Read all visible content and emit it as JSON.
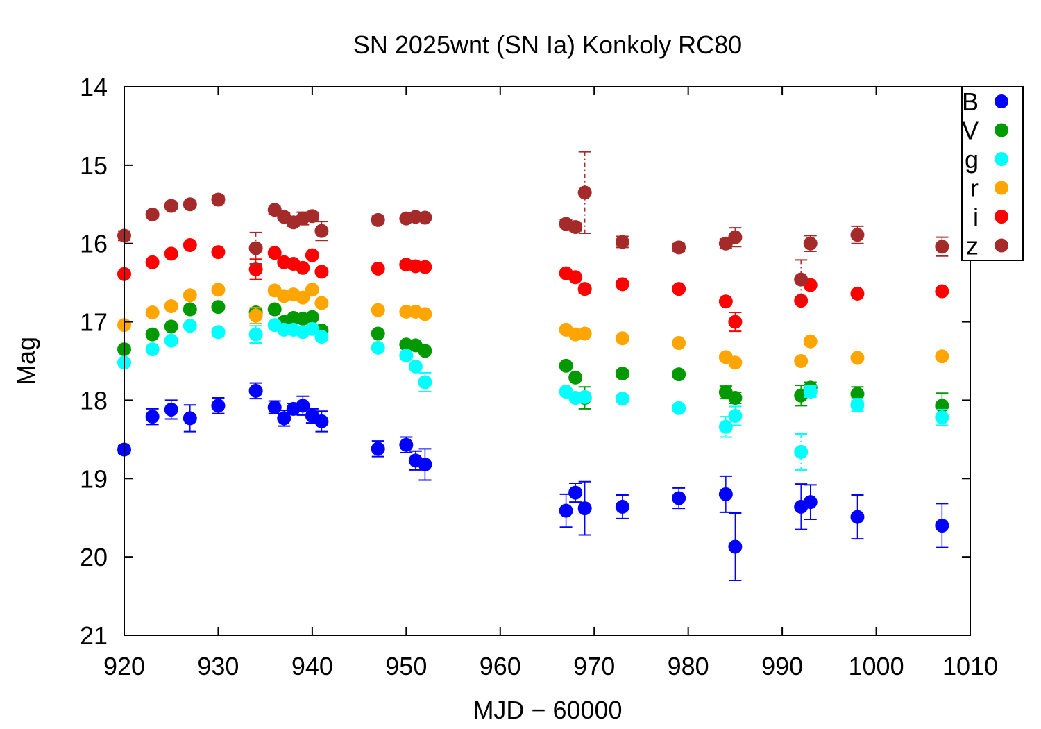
{
  "chart_data": {
    "type": "scatter",
    "title": "SN 2025wnt (SN Ia) Konkoly RC80",
    "xlabel": "MJD − 60000",
    "ylabel": "Mag",
    "xlim": [
      920,
      1010
    ],
    "ylim": [
      14,
      21
    ],
    "y_inverted": true,
    "grid": false,
    "legend_position": "top-right",
    "xticks": [
      920,
      930,
      940,
      950,
      960,
      970,
      980,
      990,
      1000,
      1010
    ],
    "yticks": [
      14,
      15,
      16,
      17,
      18,
      19,
      20,
      21
    ],
    "x": [
      920,
      923,
      925,
      927,
      930,
      934,
      936,
      937,
      938,
      939,
      940,
      941,
      947,
      950,
      951,
      952,
      967,
      968,
      969,
      973,
      979,
      984,
      985,
      992,
      993,
      998,
      1007
    ],
    "series": [
      {
        "name": "B",
        "color": "#0000ff",
        "values": [
          18.63,
          18.21,
          18.12,
          18.23,
          18.07,
          17.88,
          18.09,
          18.23,
          18.11,
          18.07,
          18.2,
          18.27,
          18.62,
          18.57,
          18.77,
          18.82,
          19.41,
          19.18,
          19.38,
          19.36,
          19.25,
          19.2,
          19.87,
          19.36,
          19.3,
          19.49,
          19.6
        ],
        "errors": [
          0.05,
          0.1,
          0.12,
          0.17,
          0.1,
          0.1,
          0.08,
          0.1,
          0.07,
          0.12,
          0.09,
          0.13,
          0.1,
          0.1,
          0.12,
          0.2,
          0.21,
          0.12,
          0.34,
          0.15,
          0.13,
          0.23,
          0.43,
          0.29,
          0.22,
          0.28,
          0.28
        ]
      },
      {
        "name": "V",
        "color": "#009900",
        "values": [
          17.35,
          17.16,
          17.06,
          16.84,
          16.81,
          16.88,
          16.84,
          17.0,
          16.95,
          16.96,
          16.94,
          17.11,
          17.15,
          17.29,
          17.3,
          17.37,
          17.56,
          17.71,
          17.97,
          17.66,
          17.67,
          17.9,
          17.97,
          17.94,
          17.84,
          17.92,
          18.07
        ],
        "errors": [
          0.03,
          0.03,
          0.03,
          0.04,
          0.03,
          0.05,
          0.03,
          0.03,
          0.03,
          0.03,
          0.03,
          0.04,
          0.03,
          0.03,
          0.03,
          0.03,
          0.04,
          0.04,
          0.14,
          0.04,
          0.04,
          0.08,
          0.07,
          0.13,
          0.07,
          0.09,
          0.16
        ]
      },
      {
        "name": "g",
        "color": "#00ffff",
        "values": [
          17.52,
          17.35,
          17.24,
          17.05,
          17.13,
          17.16,
          17.04,
          17.1,
          17.1,
          17.13,
          17.09,
          17.19,
          17.33,
          17.43,
          17.57,
          17.77,
          17.89,
          17.97,
          17.96,
          17.98,
          18.1,
          18.34,
          18.2,
          18.66,
          17.89,
          18.06,
          18.22
        ],
        "errors": [
          0.03,
          0.03,
          0.03,
          0.03,
          0.05,
          0.11,
          0.03,
          0.03,
          0.03,
          0.03,
          0.03,
          0.04,
          0.03,
          0.03,
          0.03,
          0.12,
          0.03,
          0.03,
          0.05,
          0.04,
          0.04,
          0.13,
          0.12,
          0.23,
          0.07,
          0.08,
          0.1
        ]
      },
      {
        "name": "r",
        "color": "#ffa500",
        "values": [
          17.04,
          16.88,
          16.8,
          16.66,
          16.59,
          16.92,
          16.6,
          16.67,
          16.65,
          16.69,
          16.59,
          16.76,
          16.85,
          16.87,
          16.87,
          16.9,
          17.1,
          17.16,
          17.15,
          17.21,
          17.27,
          17.45,
          17.52,
          17.5,
          17.25,
          17.46,
          17.44
        ],
        "errors": [
          0.03,
          0.03,
          0.03,
          0.03,
          0.03,
          0.1,
          0.03,
          0.03,
          0.03,
          0.03,
          0.03,
          0.03,
          0.03,
          0.03,
          0.03,
          0.03,
          0.03,
          0.03,
          0.03,
          0.03,
          0.03,
          0.03,
          0.03,
          0.03,
          0.03,
          0.03,
          0.03
        ]
      },
      {
        "name": "i",
        "color": "#ff0000",
        "values": [
          16.39,
          16.24,
          16.13,
          16.02,
          16.11,
          16.33,
          16.12,
          16.24,
          16.26,
          16.31,
          16.15,
          16.36,
          16.32,
          16.27,
          16.29,
          16.3,
          16.38,
          16.43,
          16.58,
          16.52,
          16.58,
          16.74,
          17.0,
          16.73,
          16.53,
          16.64,
          16.61
        ],
        "errors": [
          0.03,
          0.03,
          0.03,
          0.03,
          0.03,
          0.13,
          0.03,
          0.03,
          0.03,
          0.03,
          0.03,
          0.03,
          0.03,
          0.03,
          0.03,
          0.03,
          0.03,
          0.03,
          0.05,
          0.03,
          0.03,
          0.03,
          0.12,
          0.03,
          0.03,
          0.03,
          0.03
        ]
      },
      {
        "name": "z",
        "color": "#a52a2a",
        "values": [
          15.9,
          15.63,
          15.52,
          15.5,
          15.44,
          16.06,
          15.57,
          15.66,
          15.73,
          15.68,
          15.65,
          15.84,
          15.7,
          15.68,
          15.66,
          15.67,
          15.75,
          15.79,
          15.35,
          15.98,
          16.05,
          16.0,
          15.92,
          16.46,
          16.0,
          15.89,
          16.04
        ],
        "errors": [
          0.06,
          0.04,
          0.04,
          0.04,
          0.05,
          0.2,
          0.05,
          0.05,
          0.05,
          0.08,
          0.05,
          0.12,
          0.05,
          0.04,
          0.05,
          0.04,
          0.05,
          0.05,
          0.52,
          0.07,
          0.05,
          0.06,
          0.12,
          0.25,
          0.1,
          0.11,
          0.12
        ]
      }
    ]
  }
}
